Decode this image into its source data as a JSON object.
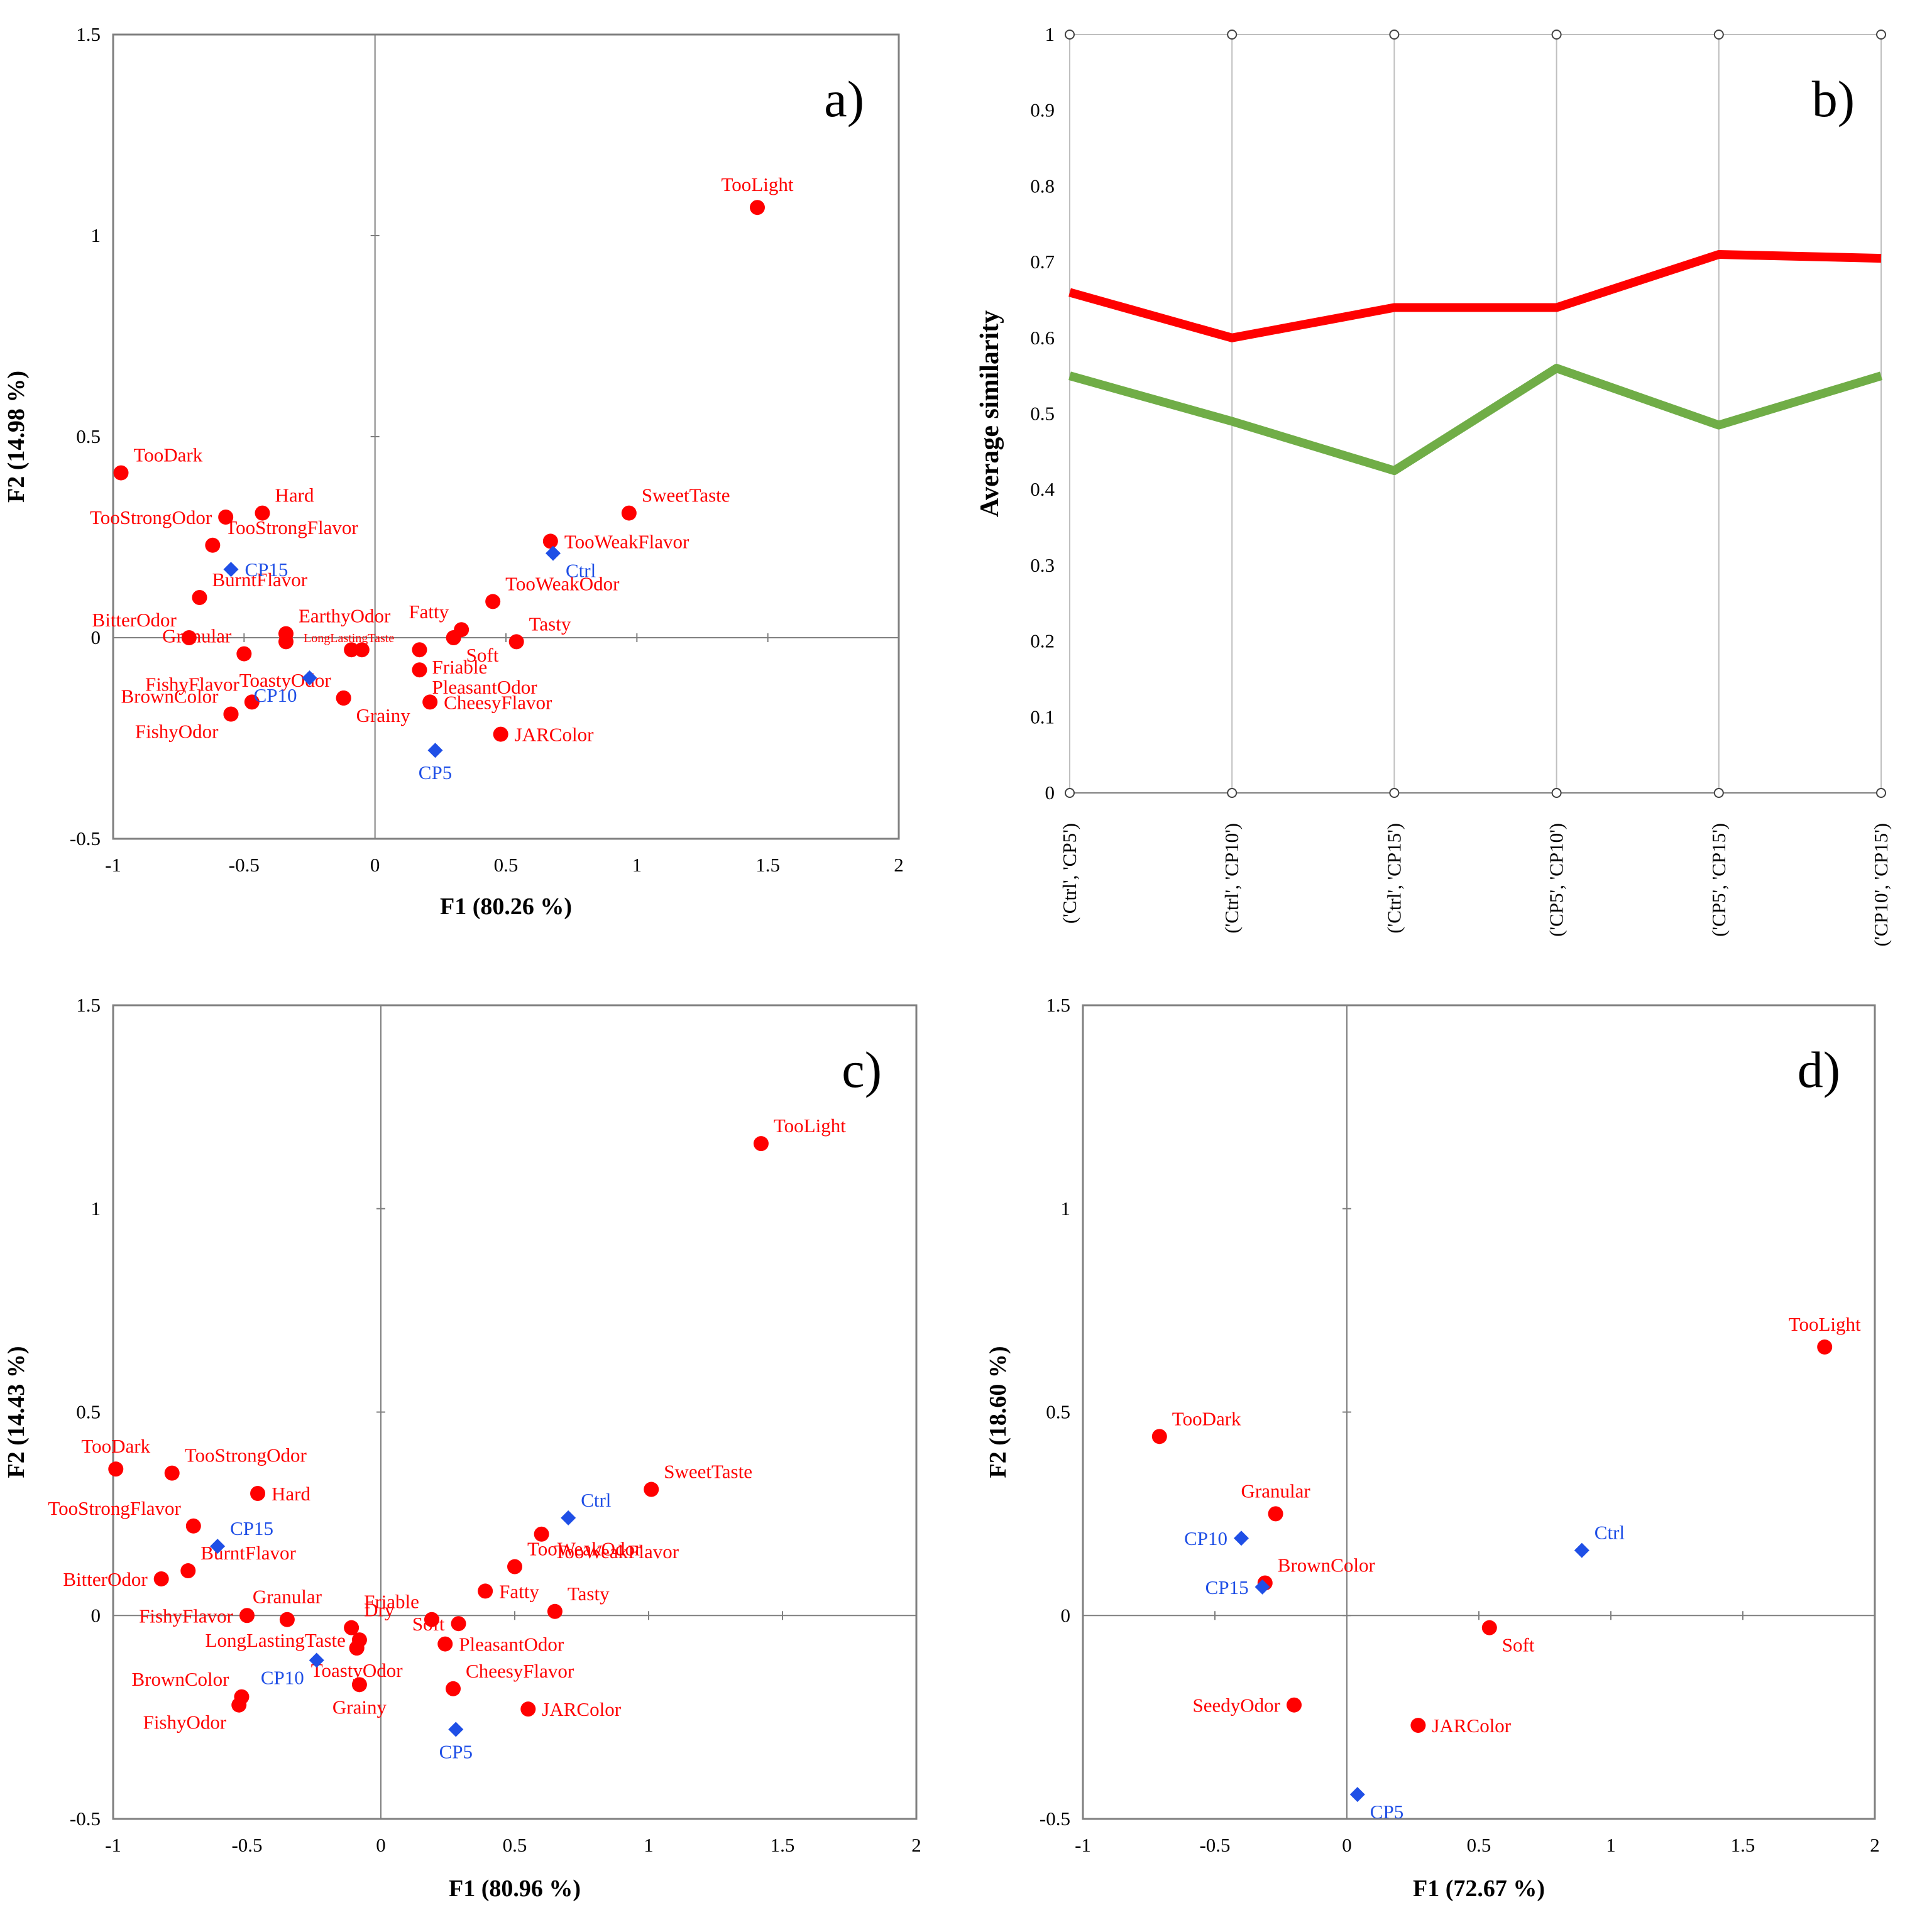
{
  "colors": {
    "attribute": "#ff0000",
    "sample": "#1f4fe6",
    "line_high": "#ff0000",
    "line_low": "#70ad47"
  },
  "chart_data": [
    {
      "id": "a",
      "type": "scatter",
      "panel_label": "a)",
      "xlabel": "F1 (80.26 %)",
      "ylabel": "F2 (14.98 %)",
      "xlim": [
        -1,
        2
      ],
      "ylim": [
        -0.5,
        1.5
      ],
      "xticks": [
        "-1",
        "-0.5",
        "0",
        "0.5",
        "1",
        "1.5",
        "2"
      ],
      "yticks": [
        "-0.5",
        "0",
        "0.5",
        "1",
        "1.5"
      ],
      "points": [
        {
          "label": "TooLight",
          "x": 1.46,
          "y": 1.07,
          "kind": "attribute",
          "lp": "tc"
        },
        {
          "label": "TooDark",
          "x": -0.97,
          "y": 0.41,
          "kind": "attribute",
          "lp": "ar"
        },
        {
          "label": "Hard",
          "x": -0.43,
          "y": 0.31,
          "kind": "attribute",
          "lp": "ar"
        },
        {
          "label": "TooStrongOdor",
          "x": -0.57,
          "y": 0.3,
          "kind": "attribute",
          "lp": "l"
        },
        {
          "label": "TooStrongFlavor",
          "x": -0.62,
          "y": 0.23,
          "kind": "attribute",
          "lp": "ar"
        },
        {
          "label": "SweetTaste",
          "x": 0.97,
          "y": 0.31,
          "kind": "attribute",
          "lp": "ar"
        },
        {
          "label": "TooWeakFlavor",
          "x": 0.67,
          "y": 0.24,
          "kind": "attribute",
          "lp": "r"
        },
        {
          "label": "BurntFlavor",
          "x": -0.67,
          "y": 0.1,
          "kind": "attribute",
          "lp": "ar"
        },
        {
          "label": "TooWeakOdor",
          "x": 0.45,
          "y": 0.09,
          "kind": "attribute",
          "lp": "ar"
        },
        {
          "label": "BitterOdor",
          "x": -0.71,
          "y": 0.0,
          "kind": "attribute",
          "lp": "al"
        },
        {
          "label": "Granular",
          "x": -0.5,
          "y": -0.04,
          "kind": "attribute",
          "lp": "al"
        },
        {
          "label": "EarthyOdor",
          "x": -0.34,
          "y": 0.01,
          "kind": "attribute",
          "lp": "ar"
        },
        {
          "label": "",
          "x": -0.34,
          "y": -0.01,
          "kind": "attribute",
          "lp": "r"
        },
        {
          "label": "LongLastingTaste",
          "x": -0.09,
          "y": -0.03,
          "kind": "attribute",
          "lp": "small"
        },
        {
          "label": "",
          "x": -0.05,
          "y": -0.03,
          "kind": "attribute",
          "lp": "r"
        },
        {
          "label": "Fatty",
          "x": 0.33,
          "y": 0.02,
          "kind": "attribute",
          "lp": "al"
        },
        {
          "label": "Soft",
          "x": 0.3,
          "y": 0.0,
          "kind": "attribute",
          "lp": "br"
        },
        {
          "label": "Tasty",
          "x": 0.54,
          "y": -0.01,
          "kind": "attribute",
          "lp": "ar"
        },
        {
          "label": "Friable",
          "x": 0.17,
          "y": -0.03,
          "kind": "attribute",
          "lp": "br"
        },
        {
          "label": "ToastyOdor",
          "x": -0.12,
          "y": -0.15,
          "kind": "attribute",
          "lp": "al"
        },
        {
          "label": "PleasantOdor",
          "x": 0.17,
          "y": -0.08,
          "kind": "attribute",
          "lp": "br"
        },
        {
          "label": "FishyFlavor",
          "x": -0.47,
          "y": -0.16,
          "kind": "attribute",
          "lp": "al"
        },
        {
          "label": "BrownColor",
          "x": -0.55,
          "y": -0.19,
          "kind": "attribute",
          "lp": "al"
        },
        {
          "label": "FishyOdor",
          "x": -0.55,
          "y": -0.19,
          "kind": "attribute",
          "lp": "bl"
        },
        {
          "label": "Grainy",
          "x": -0.12,
          "y": -0.15,
          "kind": "attribute",
          "lp": "br"
        },
        {
          "label": "CheesyFlavor",
          "x": 0.21,
          "y": -0.16,
          "kind": "attribute",
          "lp": "r"
        },
        {
          "label": "JARColor",
          "x": 0.48,
          "y": -0.24,
          "kind": "attribute",
          "lp": "r"
        },
        {
          "label": "CP15",
          "x": -0.55,
          "y": 0.17,
          "kind": "sample",
          "lp": "r"
        },
        {
          "label": "Ctrl",
          "x": 0.68,
          "y": 0.21,
          "kind": "sample",
          "lp": "br"
        },
        {
          "label": "CP10",
          "x": -0.25,
          "y": -0.1,
          "kind": "sample",
          "lp": "bl"
        },
        {
          "label": "CP5",
          "x": 0.23,
          "y": -0.28,
          "kind": "sample",
          "lp": "b"
        }
      ]
    },
    {
      "id": "b",
      "type": "line",
      "panel_label": "b)",
      "ylabel": "Average similarity",
      "ylim": [
        0,
        1
      ],
      "yticks": [
        "0",
        "0.1",
        "0.2",
        "0.3",
        "0.4",
        "0.5",
        "0.6",
        "0.7",
        "0.8",
        "0.9",
        "1"
      ],
      "categories": [
        "('Ctrl', 'CP5')",
        "('Ctrl', 'CP10')",
        "('Ctrl', 'CP15')",
        "('CP5', 'CP10')",
        "('CP5', 'CP15')",
        "('CP10', 'CP15')"
      ],
      "series": [
        {
          "name": "red",
          "values": [
            0.66,
            0.6,
            0.64,
            0.64,
            0.71,
            0.705
          ]
        },
        {
          "name": "green",
          "values": [
            0.55,
            0.49,
            0.425,
            0.56,
            0.485,
            0.55
          ]
        }
      ]
    },
    {
      "id": "c",
      "type": "scatter",
      "panel_label": "c)",
      "xlabel": "F1 (80.96 %)",
      "ylabel": "F2 (14.43 %)",
      "xlim": [
        -1,
        2
      ],
      "ylim": [
        -0.5,
        1.5
      ],
      "xticks": [
        "-1",
        "-0.5",
        "0",
        "0.5",
        "1",
        "1.5",
        "2"
      ],
      "yticks": [
        "-0.5",
        "0",
        "0.5",
        "1",
        "1.5"
      ],
      "points": [
        {
          "label": "TooLight",
          "x": 1.42,
          "y": 1.16,
          "kind": "attribute",
          "lp": "ar"
        },
        {
          "label": "TooDark",
          "x": -0.99,
          "y": 0.36,
          "kind": "attribute",
          "lp": "a"
        },
        {
          "label": "TooStrongOdor",
          "x": -0.78,
          "y": 0.35,
          "kind": "attribute",
          "lp": "ar"
        },
        {
          "label": "Hard",
          "x": -0.46,
          "y": 0.3,
          "kind": "attribute",
          "lp": "r"
        },
        {
          "label": "TooStrongFlavor",
          "x": -0.7,
          "y": 0.22,
          "kind": "attribute",
          "lp": "al"
        },
        {
          "label": "SweetTaste",
          "x": 1.01,
          "y": 0.31,
          "kind": "attribute",
          "lp": "ar"
        },
        {
          "label": "TooWeakFlavor",
          "x": 0.6,
          "y": 0.2,
          "kind": "attribute",
          "lp": "br"
        },
        {
          "label": "TooWeakOdor",
          "x": 0.5,
          "y": 0.12,
          "kind": "attribute",
          "lp": "ar"
        },
        {
          "label": "BurntFlavor",
          "x": -0.72,
          "y": 0.11,
          "kind": "attribute",
          "lp": "ar"
        },
        {
          "label": "BitterOdor",
          "x": -0.82,
          "y": 0.09,
          "kind": "attribute",
          "lp": "l"
        },
        {
          "label": "Granular",
          "x": -0.35,
          "y": -0.01,
          "kind": "attribute",
          "lp": "a"
        },
        {
          "label": "FishyFlavor",
          "x": -0.5,
          "y": 0.0,
          "kind": "attribute",
          "lp": "l"
        },
        {
          "label": "Dry",
          "x": -0.11,
          "y": -0.03,
          "kind": "attribute",
          "lp": "ar"
        },
        {
          "label": "LongLastingTaste",
          "x": -0.08,
          "y": -0.06,
          "kind": "attribute",
          "lp": "l"
        },
        {
          "label": "",
          "x": -0.09,
          "y": -0.08,
          "kind": "attribute",
          "lp": "r"
        },
        {
          "label": "Friable",
          "x": 0.19,
          "y": -0.01,
          "kind": "attribute",
          "lp": "al"
        },
        {
          "label": "Fatty",
          "x": 0.39,
          "y": 0.06,
          "kind": "attribute",
          "lp": "r"
        },
        {
          "label": "Soft",
          "x": 0.29,
          "y": -0.02,
          "kind": "attribute",
          "lp": "l"
        },
        {
          "label": "Tasty",
          "x": 0.65,
          "y": 0.01,
          "kind": "attribute",
          "lp": "ar"
        },
        {
          "label": "PleasantOdor",
          "x": 0.24,
          "y": -0.07,
          "kind": "attribute",
          "lp": "r"
        },
        {
          "label": "ToastyOdor",
          "x": -0.09,
          "y": -0.08,
          "kind": "attribute",
          "lp": "b"
        },
        {
          "label": "CheesyFlavor",
          "x": 0.27,
          "y": -0.18,
          "kind": "attribute",
          "lp": "ar"
        },
        {
          "label": "Grainy",
          "x": -0.08,
          "y": -0.17,
          "kind": "attribute",
          "lp": "b"
        },
        {
          "label": "BrownColor",
          "x": -0.52,
          "y": -0.2,
          "kind": "attribute",
          "lp": "al"
        },
        {
          "label": "FishyOdor",
          "x": -0.53,
          "y": -0.22,
          "kind": "attribute",
          "lp": "bl"
        },
        {
          "label": "JARColor",
          "x": 0.55,
          "y": -0.23,
          "kind": "attribute",
          "lp": "r"
        },
        {
          "label": "Ctrl",
          "x": 0.7,
          "y": 0.24,
          "kind": "sample",
          "lp": "ar"
        },
        {
          "label": "CP15",
          "x": -0.61,
          "y": 0.17,
          "kind": "sample",
          "lp": "ar"
        },
        {
          "label": "CP10",
          "x": -0.24,
          "y": -0.11,
          "kind": "sample",
          "lp": "bl"
        },
        {
          "label": "CP5",
          "x": 0.28,
          "y": -0.28,
          "kind": "sample",
          "lp": "b"
        }
      ]
    },
    {
      "id": "d",
      "type": "scatter",
      "panel_label": "d)",
      "xlabel": "F1 (72.67 %)",
      "ylabel": "F2 (18.60 %)",
      "xlim": [
        -1,
        2
      ],
      "ylim": [
        -0.5,
        1.5
      ],
      "xticks": [
        "-1",
        "-0.5",
        "0",
        "0.5",
        "1",
        "1.5",
        "2"
      ],
      "yticks": [
        "-0.5",
        "0",
        "0.5",
        "1",
        "1.5"
      ],
      "points": [
        {
          "label": "TooLight",
          "x": 1.81,
          "y": 0.66,
          "kind": "attribute",
          "lp": "a"
        },
        {
          "label": "TooDark",
          "x": -0.71,
          "y": 0.44,
          "kind": "attribute",
          "lp": "ar"
        },
        {
          "label": "Granular",
          "x": -0.27,
          "y": 0.25,
          "kind": "attribute",
          "lp": "a"
        },
        {
          "label": "BrownColor",
          "x": -0.31,
          "y": 0.08,
          "kind": "attribute",
          "lp": "ar"
        },
        {
          "label": "Soft",
          "x": 0.54,
          "y": -0.03,
          "kind": "attribute",
          "lp": "br"
        },
        {
          "label": "SeedyOdor",
          "x": -0.2,
          "y": -0.22,
          "kind": "attribute",
          "lp": "l"
        },
        {
          "label": "JARColor",
          "x": 0.27,
          "y": -0.27,
          "kind": "attribute",
          "lp": "r"
        },
        {
          "label": "Ctrl",
          "x": 0.89,
          "y": 0.16,
          "kind": "sample",
          "lp": "ar"
        },
        {
          "label": "CP10",
          "x": -0.4,
          "y": 0.19,
          "kind": "sample",
          "lp": "l"
        },
        {
          "label": "CP15",
          "x": -0.32,
          "y": 0.07,
          "kind": "sample",
          "lp": "l"
        },
        {
          "label": "CP5",
          "x": 0.04,
          "y": -0.44,
          "kind": "sample",
          "lp": "br"
        }
      ]
    }
  ]
}
